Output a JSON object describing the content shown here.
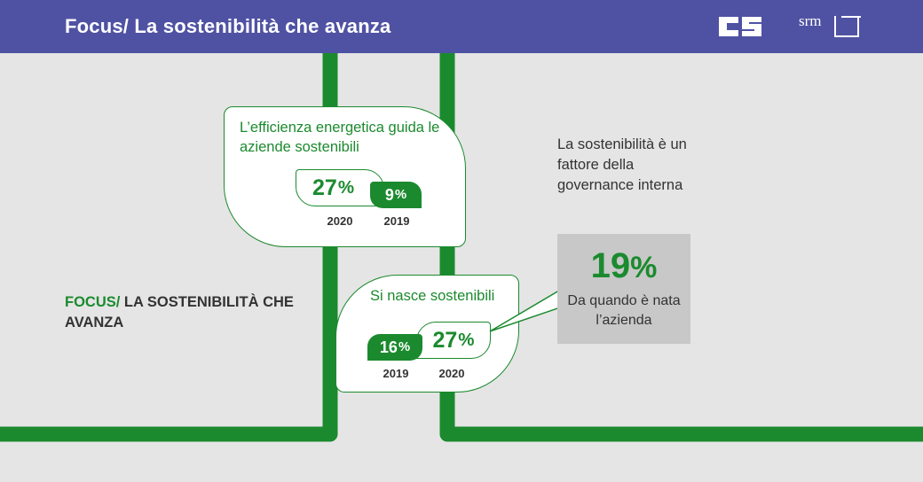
{
  "header": {
    "title": "Focus/ La sostenibilità che avanza",
    "logo_cs": "CS",
    "logo_srm": "srm"
  },
  "colors": {
    "header_bg": "#4f52a3",
    "accent_green": "#1b8a2e",
    "background": "#e5e5e5",
    "stat_box_bg": "#c8c8c8"
  },
  "card_energy": {
    "title": "L’efficienza energetica guida le aziende sostenibili",
    "values": [
      {
        "year": "2020",
        "value": "27",
        "unit": "%"
      },
      {
        "year": "2019",
        "value": "9",
        "unit": "%"
      }
    ]
  },
  "card_born": {
    "title": "Si nasce sostenibili",
    "values": [
      {
        "year": "2019",
        "value": "16",
        "unit": "%"
      },
      {
        "year": "2020",
        "value": "27",
        "unit": "%"
      }
    ]
  },
  "governance": {
    "text": "La sostenibilità è un fattore della governance interna",
    "value": "19",
    "unit": "%",
    "caption": "Da quando è nata l’azienda"
  },
  "left_label": {
    "accent": "FOCUS/",
    "text": " LA SOSTENIBILITÀ CHE AVANZA"
  }
}
